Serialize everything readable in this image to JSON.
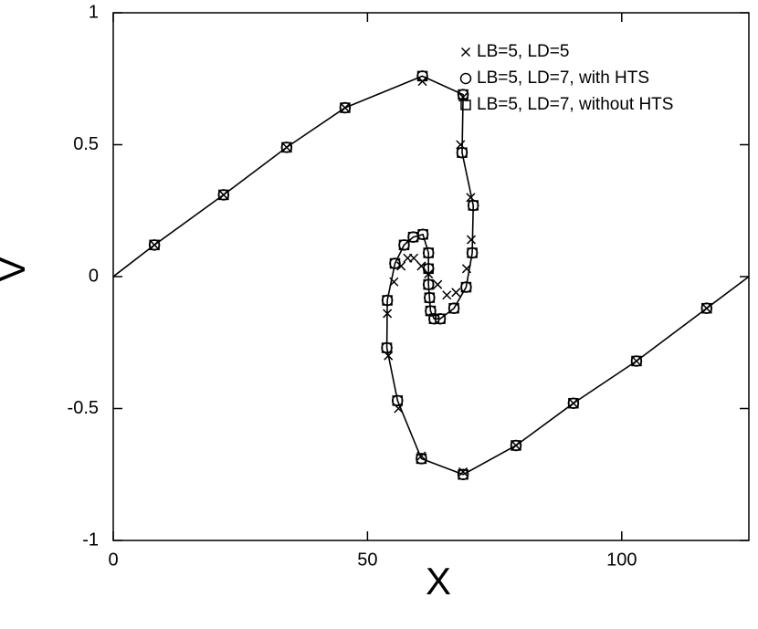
{
  "chart_data": {
    "type": "scatter",
    "x_label": "X",
    "y_label": "V",
    "xlim": [
      0,
      125
    ],
    "ylim": [
      -1,
      1
    ],
    "xticks": [
      0,
      50,
      100
    ],
    "yticks": [
      -1,
      -0.5,
      0,
      0.5,
      1
    ],
    "curve": {
      "color": "#000000",
      "x": [
        0,
        8.1,
        21.7,
        34.1,
        45.6,
        60.8,
        68.8,
        68.6,
        70.8,
        70.6,
        69.4,
        67.0,
        64.3,
        63.1,
        62.4,
        62.2,
        62.0,
        62.0,
        62.0,
        60.9,
        59.0,
        57.2,
        55.4,
        53.9,
        53.8,
        55.9,
        60.6,
        68.8,
        79.2,
        90.5,
        102.9,
        116.7,
        125
      ],
      "y": [
        0,
        0.12,
        0.31,
        0.49,
        0.64,
        0.76,
        0.69,
        0.47,
        0.27,
        0.09,
        -0.04,
        -0.12,
        -0.16,
        -0.16,
        -0.13,
        -0.08,
        -0.03,
        0.03,
        0.09,
        0.16,
        0.15,
        0.12,
        0.05,
        -0.09,
        -0.27,
        -0.47,
        -0.69,
        -0.75,
        -0.64,
        -0.48,
        -0.32,
        -0.12,
        0
      ]
    },
    "series": [
      {
        "name": "LB=5, LD=5",
        "marker": "cross",
        "color": "#000000",
        "x": [
          8.1,
          21.7,
          34.1,
          45.6,
          60.8,
          68.8,
          68.3,
          70.3,
          70.4,
          69.5,
          67.4,
          65.6,
          63.8,
          62.0,
          60.6,
          59.1,
          57.9,
          56.6,
          55.2,
          53.9,
          54.1,
          56.1,
          60.6,
          68.8,
          79.2,
          90.5,
          102.9,
          116.7
        ],
        "y": [
          0.12,
          0.31,
          0.49,
          0.64,
          0.74,
          0.68,
          0.5,
          0.3,
          0.14,
          0.03,
          -0.06,
          -0.07,
          -0.03,
          0.01,
          0.04,
          0.07,
          0.07,
          0.04,
          -0.02,
          -0.14,
          -0.3,
          -0.5,
          -0.68,
          -0.74,
          -0.64,
          -0.48,
          -0.32,
          -0.12
        ]
      },
      {
        "name": "LB=5, LD=7, with HTS",
        "marker": "circle",
        "color": "#000000",
        "x": [
          8.1,
          21.7,
          34.1,
          45.6,
          60.8,
          68.8,
          68.6,
          70.8,
          70.6,
          69.4,
          67.0,
          64.3,
          63.1,
          62.4,
          62.2,
          62.0,
          62.0,
          62.0,
          60.9,
          59.0,
          57.2,
          55.4,
          53.9,
          53.8,
          55.9,
          60.6,
          68.8,
          79.2,
          90.5,
          102.9,
          116.7
        ],
        "y": [
          0.12,
          0.31,
          0.49,
          0.64,
          0.76,
          0.69,
          0.47,
          0.27,
          0.09,
          -0.04,
          -0.12,
          -0.16,
          -0.16,
          -0.13,
          -0.08,
          -0.03,
          0.03,
          0.09,
          0.16,
          0.15,
          0.12,
          0.05,
          -0.09,
          -0.27,
          -0.47,
          -0.69,
          -0.75,
          -0.64,
          -0.48,
          -0.32,
          -0.12
        ]
      },
      {
        "name": "LB=5, LD=7, without HTS",
        "marker": "square",
        "color": "#000000",
        "x": [
          8.1,
          21.7,
          34.1,
          45.6,
          60.8,
          68.8,
          68.6,
          70.8,
          70.6,
          69.4,
          67.0,
          64.3,
          63.1,
          62.4,
          62.2,
          62.0,
          62.0,
          62.0,
          60.9,
          59.0,
          57.2,
          55.4,
          53.9,
          53.8,
          55.9,
          60.6,
          68.8,
          79.2,
          90.5,
          102.9,
          116.7
        ],
        "y": [
          0.12,
          0.31,
          0.49,
          0.64,
          0.76,
          0.69,
          0.47,
          0.27,
          0.09,
          -0.04,
          -0.12,
          -0.16,
          -0.16,
          -0.13,
          -0.08,
          -0.03,
          0.03,
          0.09,
          0.16,
          0.15,
          0.12,
          0.05,
          -0.09,
          -0.27,
          -0.47,
          -0.69,
          -0.75,
          -0.64,
          -0.48,
          -0.32,
          -0.12
        ]
      }
    ]
  }
}
